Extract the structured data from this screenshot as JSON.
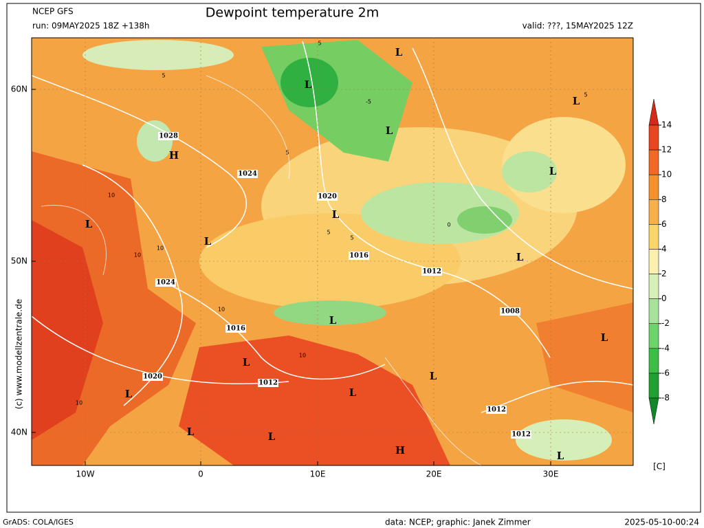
{
  "header": {
    "model": "NCEP GFS",
    "run": "run: 09MAY2025 18Z +138h",
    "title": "Dewpoint temperature 2m",
    "valid": "valid: ???, 15MAY2025 12Z"
  },
  "side_text": "(c) www.modellzentrale.de",
  "axes": {
    "lat_labels": [
      "60N",
      "50N",
      "40N"
    ],
    "lon_labels": [
      "10W",
      "0",
      "10E",
      "20E",
      "30E"
    ]
  },
  "colorbar": {
    "ticks": [
      14,
      12,
      10,
      8,
      6,
      4,
      2,
      0,
      -2,
      -4,
      -6,
      -8
    ],
    "unit": "[C]",
    "colors": [
      "#d42a1a",
      "#e8461f",
      "#f06a24",
      "#f5902e",
      "#f8b04a",
      "#fad66a",
      "#fcf0b0",
      "#d6f0b8",
      "#a6e29a",
      "#6cd26a",
      "#3cbe46",
      "#20a032",
      "#108828"
    ]
  },
  "isobar_labels": [
    "1028",
    "1024",
    "1020",
    "1016",
    "1012",
    "1024",
    "1016",
    "1012",
    "1020",
    "1008",
    "1012",
    "1012"
  ],
  "pressure_centers": [
    "L",
    "L",
    "L",
    "L",
    "H",
    "L",
    "L",
    "L",
    "L",
    "L",
    "L",
    "L",
    "L",
    "L",
    "L",
    "L",
    "L",
    "L",
    "H",
    "L"
  ],
  "contour_labels": [
    "5",
    "5",
    "5",
    "10",
    "10",
    "10",
    "10",
    "10",
    "5",
    "5",
    "0",
    "-5",
    "5",
    "10"
  ],
  "footer": {
    "software": "GrADS: COLA/IGES",
    "credits": "data: NCEP; graphic: Janek Zimmer",
    "timestamp": "2025-05-10-00:24"
  }
}
